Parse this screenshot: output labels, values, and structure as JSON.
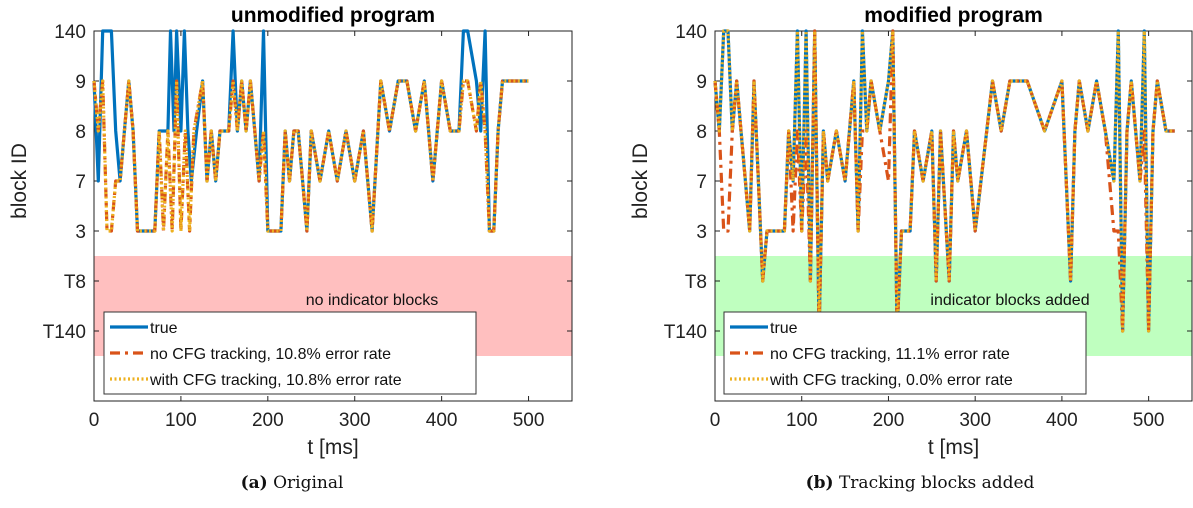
{
  "captions": [
    {
      "label": "(a)",
      "text": "Original"
    },
    {
      "label": "(b)",
      "text": "Tracking blocks added"
    }
  ],
  "colors": {
    "true": "#0072BD",
    "no_cfg": "#D95319",
    "with_cfg": "#EDB120",
    "band_a": "#FFBFBF",
    "band_b": "#BFFFBF"
  },
  "chart_data": [
    {
      "type": "line",
      "title": "unmodified program",
      "xlabel": "t [ms]",
      "ylabel": "block ID",
      "xlim": [
        0,
        550
      ],
      "xticks": [
        0,
        100,
        200,
        300,
        400,
        500
      ],
      "y_categories": [
        "T140",
        "T8",
        "3",
        "7",
        "8",
        "9",
        "140"
      ],
      "band": {
        "from": "T140",
        "to": "3",
        "label": "no indicator blocks"
      },
      "legend_placement": "bottom-left",
      "series": [
        {
          "name": "true",
          "style": "solid",
          "x": [
            0,
            5,
            10,
            20,
            25,
            30,
            35,
            40,
            45,
            50,
            55,
            60,
            70,
            75,
            85,
            88,
            92,
            95,
            100,
            104,
            108,
            112,
            118,
            125,
            130,
            135,
            140,
            145,
            150,
            155,
            160,
            165,
            170,
            175,
            180,
            185,
            190,
            195,
            200,
            205,
            215,
            220,
            225,
            230,
            235,
            240,
            245,
            250,
            260,
            270,
            280,
            290,
            300,
            310,
            320,
            330,
            340,
            350,
            360,
            370,
            380,
            390,
            400,
            410,
            420,
            425,
            430,
            440,
            445,
            450,
            455,
            460,
            465,
            470,
            480,
            490,
            500
          ],
          "y": [
            "9",
            "7",
            "140",
            "140",
            "8",
            "7",
            "8",
            "9",
            "8",
            "3",
            "3",
            "3",
            "3",
            "8",
            "8",
            "140",
            "8",
            "140",
            "8",
            "140",
            "8",
            "7",
            "8",
            "9",
            "7",
            "8",
            "7",
            "8",
            "8",
            "8",
            "140",
            "8",
            "9",
            "8",
            "9",
            "8",
            "7",
            "140",
            "3",
            "3",
            "3",
            "8",
            "7",
            "8",
            "8",
            "7",
            "3",
            "8",
            "7",
            "8",
            "7",
            "8",
            "7",
            "8",
            "3",
            "9",
            "8",
            "9",
            "9",
            "8",
            "9",
            "7",
            "9",
            "8",
            "8",
            "140",
            "140",
            "9",
            "8",
            "140",
            "3",
            "3",
            "8",
            "9",
            "9",
            "9",
            "9"
          ]
        },
        {
          "name": "no CFG tracking, 10.8% error rate",
          "style": "dashdot",
          "x": [
            0,
            5,
            10,
            15,
            20,
            25,
            30,
            35,
            40,
            45,
            50,
            55,
            60,
            70,
            75,
            80,
            85,
            90,
            95,
            100,
            105,
            110,
            115,
            125,
            130,
            135,
            140,
            145,
            150,
            155,
            160,
            165,
            170,
            175,
            180,
            185,
            190,
            195,
            200,
            205,
            215,
            220,
            225,
            230,
            235,
            240,
            245,
            250,
            260,
            270,
            280,
            290,
            300,
            310,
            320,
            330,
            340,
            350,
            360,
            370,
            380,
            390,
            400,
            410,
            420,
            425,
            430,
            440,
            445,
            450,
            455,
            460,
            465,
            470,
            480,
            490,
            500
          ],
          "y": [
            "9",
            "8",
            "9",
            "3",
            "3",
            "7",
            "7",
            "8",
            "9",
            "8",
            "3",
            "3",
            "3",
            "3",
            "8",
            "3",
            "8",
            "3",
            "9",
            "3",
            "8",
            "3",
            "8",
            "9",
            "7",
            "8",
            "7",
            "8",
            "8",
            "8",
            "9",
            "8",
            "9",
            "8",
            "9",
            "8",
            "7",
            "8",
            "3",
            "3",
            "3",
            "8",
            "7",
            "8",
            "8",
            "7",
            "3",
            "8",
            "7",
            "8",
            "7",
            "8",
            "7",
            "8",
            "3",
            "9",
            "8",
            "9",
            "9",
            "8",
            "9",
            "7",
            "9",
            "8",
            "8",
            "9",
            "9",
            "8",
            "9",
            "8",
            "3",
            "3",
            "8",
            "9",
            "9",
            "9",
            "9"
          ]
        },
        {
          "name": "with CFG tracking, 10.8% error rate",
          "style": "dotted",
          "x": [
            0,
            5,
            10,
            15,
            20,
            25,
            30,
            35,
            40,
            45,
            50,
            55,
            60,
            70,
            75,
            80,
            85,
            90,
            95,
            100,
            105,
            110,
            115,
            125,
            130,
            135,
            140,
            145,
            150,
            155,
            160,
            165,
            170,
            175,
            180,
            185,
            190,
            195,
            200,
            205,
            215,
            220,
            225,
            230,
            235,
            240,
            245,
            250,
            260,
            270,
            280,
            290,
            300,
            310,
            320,
            330,
            340,
            350,
            360,
            370,
            380,
            390,
            400,
            410,
            420,
            425,
            430,
            440,
            445,
            450,
            455,
            460,
            465,
            470,
            480,
            490,
            500
          ],
          "y": [
            "9",
            "8",
            "9",
            "3",
            "3",
            "7",
            "7",
            "8",
            "9",
            "8",
            "3",
            "3",
            "3",
            "3",
            "8",
            "3",
            "8",
            "3",
            "9",
            "3",
            "8",
            "3",
            "8",
            "9",
            "7",
            "8",
            "7",
            "8",
            "8",
            "8",
            "9",
            "8",
            "9",
            "8",
            "9",
            "8",
            "7",
            "8",
            "3",
            "3",
            "3",
            "8",
            "7",
            "8",
            "8",
            "7",
            "3",
            "8",
            "7",
            "8",
            "7",
            "8",
            "7",
            "8",
            "3",
            "9",
            "8",
            "9",
            "9",
            "8",
            "9",
            "7",
            "9",
            "8",
            "8",
            "9",
            "9",
            "8",
            "9",
            "8",
            "3",
            "3",
            "8",
            "9",
            "9",
            "9",
            "9"
          ]
        }
      ]
    },
    {
      "type": "line",
      "title": "modified program",
      "xlabel": "t [ms]",
      "ylabel": "block ID",
      "xlim": [
        0,
        550
      ],
      "xticks": [
        0,
        100,
        200,
        300,
        400,
        500
      ],
      "y_categories": [
        "T140",
        "T8",
        "3",
        "7",
        "8",
        "9",
        "140"
      ],
      "band": {
        "from": "T140",
        "to": "3",
        "label": "indicator blocks added"
      },
      "legend_placement": "bottom-left",
      "series": [
        {
          "name": "true",
          "style": "solid",
          "x": [
            0,
            5,
            10,
            15,
            20,
            25,
            30,
            35,
            40,
            45,
            50,
            55,
            60,
            70,
            80,
            85,
            90,
            95,
            100,
            105,
            110,
            115,
            120,
            125,
            130,
            140,
            150,
            160,
            165,
            170,
            175,
            180,
            190,
            200,
            205,
            210,
            215,
            225,
            230,
            240,
            250,
            255,
            260,
            270,
            275,
            280,
            290,
            300,
            320,
            330,
            340,
            360,
            380,
            400,
            410,
            415,
            420,
            430,
            440,
            450,
            460,
            465,
            470,
            475,
            480,
            490,
            495,
            500,
            505,
            510,
            520,
            530
          ],
          "y": [
            "9",
            "8",
            "140",
            "140",
            "8",
            "9",
            "8",
            "7",
            "3",
            "9",
            "7",
            "T8",
            "3",
            "3",
            "3",
            "8",
            "7",
            "140",
            "3",
            "140",
            "T8",
            "140",
            "T140",
            "8",
            "7",
            "8",
            "7",
            "9",
            "3",
            "140",
            "8",
            "9",
            "8",
            "9",
            "140",
            "T140",
            "3",
            "3",
            "8",
            "7",
            "8",
            "T8",
            "8",
            "T8",
            "8",
            "7",
            "8",
            "3",
            "9",
            "8",
            "9",
            "9",
            "8",
            "9",
            "T8",
            "8",
            "9",
            "8",
            "9",
            "8",
            "7",
            "140",
            "T140",
            "8",
            "9",
            "7",
            "140",
            "T140",
            "8",
            "9",
            "8",
            "8"
          ]
        },
        {
          "name": "no CFG tracking, 11.1% error rate",
          "style": "dashdot",
          "x": [
            0,
            5,
            10,
            15,
            20,
            25,
            30,
            35,
            40,
            45,
            50,
            55,
            60,
            70,
            80,
            85,
            90,
            95,
            100,
            105,
            110,
            115,
            120,
            125,
            130,
            140,
            150,
            160,
            165,
            170,
            175,
            180,
            190,
            200,
            205,
            210,
            215,
            225,
            230,
            240,
            250,
            255,
            260,
            270,
            275,
            280,
            290,
            300,
            320,
            330,
            340,
            360,
            380,
            400,
            410,
            415,
            420,
            430,
            440,
            450,
            460,
            465,
            470,
            475,
            480,
            490,
            495,
            500,
            505,
            510,
            520,
            530
          ],
          "y": [
            "9",
            "8",
            "3",
            "3",
            "8",
            "9",
            "8",
            "7",
            "3",
            "9",
            "7",
            "T8",
            "3",
            "3",
            "3",
            "8",
            "3",
            "8",
            "3",
            "8",
            "T8",
            "140",
            "T140",
            "8",
            "7",
            "8",
            "7",
            "9",
            "3",
            "8",
            "8",
            "9",
            "8",
            "7",
            "140",
            "T140",
            "3",
            "3",
            "8",
            "7",
            "8",
            "T8",
            "8",
            "T8",
            "8",
            "7",
            "8",
            "3",
            "9",
            "8",
            "9",
            "9",
            "8",
            "9",
            "T8",
            "8",
            "9",
            "8",
            "9",
            "8",
            "3",
            "3",
            "T140",
            "8",
            "9",
            "7",
            "8",
            "T140",
            "8",
            "9",
            "8",
            "8"
          ]
        },
        {
          "name": "with CFG tracking, 0.0% error rate",
          "style": "dotted",
          "x": [
            0,
            5,
            10,
            15,
            20,
            25,
            30,
            35,
            40,
            45,
            50,
            55,
            60,
            70,
            80,
            85,
            90,
            95,
            100,
            105,
            110,
            115,
            120,
            125,
            130,
            140,
            150,
            160,
            165,
            170,
            175,
            180,
            190,
            200,
            205,
            210,
            215,
            225,
            230,
            240,
            250,
            255,
            260,
            270,
            275,
            280,
            290,
            300,
            320,
            330,
            340,
            360,
            380,
            400,
            410,
            415,
            420,
            430,
            440,
            450,
            460,
            465,
            470,
            475,
            480,
            490,
            495,
            500,
            505,
            510,
            520,
            530
          ],
          "y": [
            "9",
            "8",
            "140",
            "140",
            "8",
            "9",
            "8",
            "7",
            "3",
            "9",
            "7",
            "T8",
            "3",
            "3",
            "3",
            "8",
            "7",
            "140",
            "3",
            "140",
            "T8",
            "140",
            "T140",
            "8",
            "7",
            "8",
            "7",
            "9",
            "3",
            "140",
            "8",
            "9",
            "8",
            "9",
            "140",
            "T140",
            "3",
            "3",
            "8",
            "7",
            "8",
            "T8",
            "8",
            "T8",
            "8",
            "7",
            "8",
            "3",
            "9",
            "8",
            "9",
            "9",
            "8",
            "9",
            "T8",
            "8",
            "9",
            "8",
            "9",
            "8",
            "7",
            "140",
            "T140",
            "8",
            "9",
            "7",
            "140",
            "T140",
            "8",
            "9",
            "8",
            "8"
          ]
        }
      ]
    }
  ]
}
